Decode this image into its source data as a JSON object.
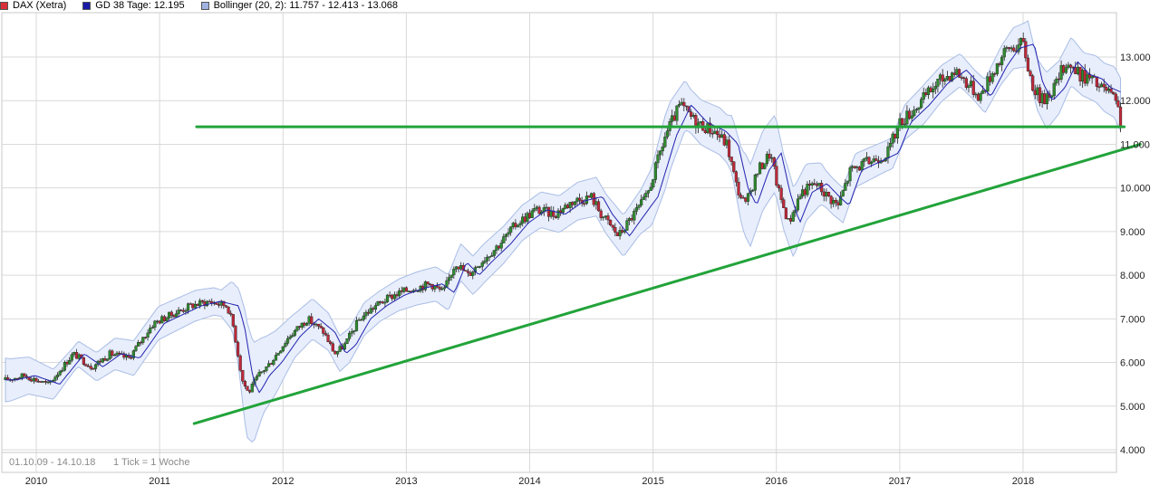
{
  "legend": [
    {
      "label": "DAX (Xetra)",
      "color": "#d8303a"
    },
    {
      "label": "GD 38 Tage: 12.195",
      "color": "#1a1aa8"
    },
    {
      "label": "Bollinger (20, 2): 11.757 - 12.413 - 13.068",
      "color": "#9fb2e0"
    }
  ],
  "footer": {
    "range": "01.10.09 - 14.10.18",
    "tick": "1 Tick = 1 Woche"
  },
  "colors": {
    "grid": "#d9d9d9",
    "band_fill": "#e8eefb",
    "band_stroke": "#a9bde6",
    "ma": "#2323b0",
    "up": "#2e8b2e",
    "down": "#c0283a",
    "trend": "#22a33a"
  },
  "chart_data": {
    "type": "candlestick",
    "ylim": [
      3600,
      13900
    ],
    "xlim": [
      2009.75,
      2018.79
    ],
    "yticks": [
      {
        "value": 4000,
        "label": "4.000"
      },
      {
        "value": 5000,
        "label": "5.000"
      },
      {
        "value": 6000,
        "label": "6.000"
      },
      {
        "value": 7000,
        "label": "7.000"
      },
      {
        "value": 8000,
        "label": "8.000"
      },
      {
        "value": 9000,
        "label": "9.000"
      },
      {
        "value": 10000,
        "label": "10.000"
      },
      {
        "value": 11000,
        "label": "11.000"
      },
      {
        "value": 12000,
        "label": "12.000"
      },
      {
        "value": 13000,
        "label": "13.000"
      }
    ],
    "xticks": [
      {
        "value": 2010,
        "label": "2010"
      },
      {
        "value": 2011,
        "label": "2011"
      },
      {
        "value": 2012,
        "label": "2012"
      },
      {
        "value": 2013,
        "label": "2013"
      },
      {
        "value": 2014,
        "label": "2014"
      },
      {
        "value": 2015,
        "label": "2015"
      },
      {
        "value": 2016,
        "label": "2016"
      },
      {
        "value": 2017,
        "label": "2017"
      },
      {
        "value": 2018,
        "label": "2018"
      }
    ],
    "price_path": [
      [
        2009.75,
        5600
      ],
      [
        2009.9,
        5700
      ],
      [
        2010.1,
        5500
      ],
      [
        2010.3,
        6200
      ],
      [
        2010.45,
        5900
      ],
      [
        2010.6,
        6200
      ],
      [
        2010.75,
        6100
      ],
      [
        2010.95,
        6900
      ],
      [
        2011.1,
        7100
      ],
      [
        2011.25,
        7300
      ],
      [
        2011.4,
        7400
      ],
      [
        2011.55,
        7300
      ],
      [
        2011.6,
        6800
      ],
      [
        2011.67,
        5600
      ],
      [
        2011.72,
        5300
      ],
      [
        2011.8,
        5700
      ],
      [
        2011.9,
        6000
      ],
      [
        2012.05,
        6600
      ],
      [
        2012.2,
        7000
      ],
      [
        2012.33,
        6700
      ],
      [
        2012.42,
        6200
      ],
      [
        2012.5,
        6400
      ],
      [
        2012.62,
        7000
      ],
      [
        2012.75,
        7300
      ],
      [
        2012.9,
        7550
      ],
      [
        2013.05,
        7700
      ],
      [
        2013.2,
        7800
      ],
      [
        2013.3,
        7600
      ],
      [
        2013.4,
        8300
      ],
      [
        2013.5,
        8000
      ],
      [
        2013.6,
        8300
      ],
      [
        2013.75,
        8700
      ],
      [
        2013.9,
        9200
      ],
      [
        2014.05,
        9500
      ],
      [
        2014.2,
        9400
      ],
      [
        2014.35,
        9700
      ],
      [
        2014.5,
        9800
      ],
      [
        2014.58,
        9400
      ],
      [
        2014.72,
        8900
      ],
      [
        2014.82,
        9300
      ],
      [
        2014.95,
        9800
      ],
      [
        2015.1,
        11200
      ],
      [
        2015.22,
        11900
      ],
      [
        2015.35,
        11500
      ],
      [
        2015.5,
        11300
      ],
      [
        2015.6,
        11000
      ],
      [
        2015.68,
        10000
      ],
      [
        2015.75,
        9600
      ],
      [
        2015.85,
        10400
      ],
      [
        2015.95,
        10800
      ],
      [
        2016.02,
        9900
      ],
      [
        2016.1,
        9200
      ],
      [
        2016.2,
        9900
      ],
      [
        2016.32,
        10100
      ],
      [
        2016.42,
        9800
      ],
      [
        2016.5,
        9600
      ],
      [
        2016.6,
        10400
      ],
      [
        2016.75,
        10600
      ],
      [
        2016.9,
        10800
      ],
      [
        2017.0,
        11500
      ],
      [
        2017.15,
        11900
      ],
      [
        2017.3,
        12400
      ],
      [
        2017.45,
        12700
      ],
      [
        2017.55,
        12400
      ],
      [
        2017.65,
        12100
      ],
      [
        2017.78,
        12800
      ],
      [
        2017.88,
        13200
      ],
      [
        2018.0,
        13300
      ],
      [
        2018.07,
        12400
      ],
      [
        2018.15,
        12000
      ],
      [
        2018.25,
        12300
      ],
      [
        2018.35,
        12900
      ],
      [
        2018.45,
        12600
      ],
      [
        2018.55,
        12500
      ],
      [
        2018.62,
        12300
      ],
      [
        2018.7,
        12200
      ],
      [
        2018.77,
        11800
      ],
      [
        2018.785,
        11520
      ]
    ],
    "ma_offset": 0.15,
    "bollinger_width": [
      [
        2009.75,
        500
      ],
      [
        2010.3,
        280
      ],
      [
        2010.8,
        400
      ],
      [
        2011.3,
        350
      ],
      [
        2011.5,
        300
      ],
      [
        2011.6,
        600
      ],
      [
        2011.7,
        1350
      ],
      [
        2011.85,
        850
      ],
      [
        2012.1,
        500
      ],
      [
        2012.4,
        420
      ],
      [
        2012.8,
        350
      ],
      [
        2013.3,
        400
      ],
      [
        2013.6,
        450
      ],
      [
        2014.0,
        400
      ],
      [
        2014.6,
        450
      ],
      [
        2014.9,
        500
      ],
      [
        2015.1,
        850
      ],
      [
        2015.3,
        500
      ],
      [
        2015.6,
        550
      ],
      [
        2015.75,
        950
      ],
      [
        2016.1,
        850
      ],
      [
        2016.4,
        420
      ],
      [
        2016.9,
        350
      ],
      [
        2017.2,
        450
      ],
      [
        2017.6,
        350
      ],
      [
        2018.0,
        500
      ],
      [
        2018.2,
        650
      ],
      [
        2018.5,
        500
      ],
      [
        2018.79,
        600
      ]
    ],
    "trendlines": [
      {
        "name": "support-line",
        "from": [
          2011.28,
          4600
        ],
        "to": [
          2018.95,
          11000
        ]
      },
      {
        "name": "resistance-line",
        "from": [
          2011.3,
          11400
        ],
        "to": [
          2018.82,
          11400
        ]
      }
    ]
  }
}
